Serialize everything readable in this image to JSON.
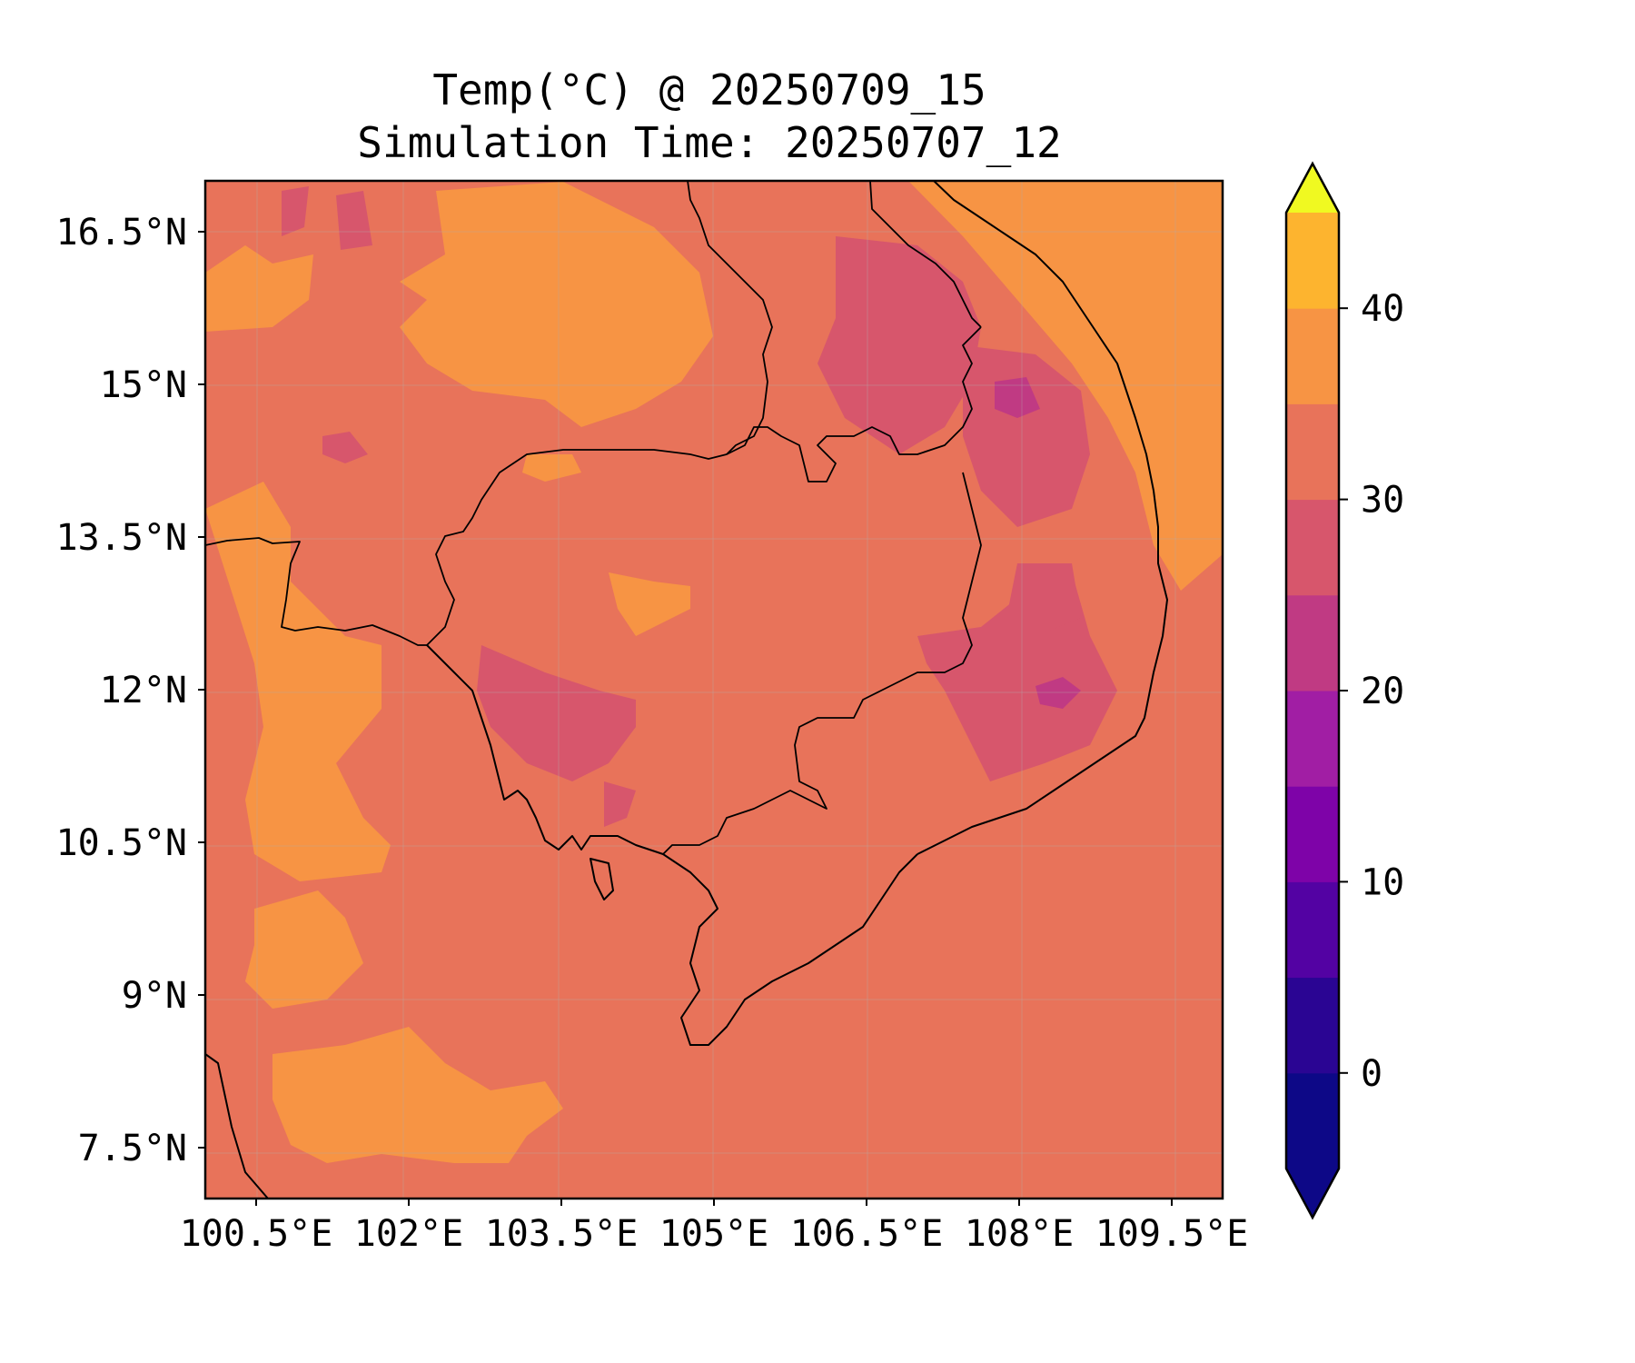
{
  "figure": {
    "title": "Temp(°C) @ 20250709_15",
    "subtitle": "Simulation Time: 20250707_12"
  },
  "map": {
    "lon_range": [
      100.0,
      110.0
    ],
    "lat_range": [
      7.0,
      17.0
    ],
    "lon_ticks": [
      {
        "value": 100.5,
        "label": "100.5°E"
      },
      {
        "value": 102.0,
        "label": "102°E"
      },
      {
        "value": 103.5,
        "label": "103.5°E"
      },
      {
        "value": 105.0,
        "label": "105°E"
      },
      {
        "value": 106.5,
        "label": "106.5°E"
      },
      {
        "value": 108.0,
        "label": "108°E"
      },
      {
        "value": 109.5,
        "label": "109.5°E"
      }
    ],
    "lat_ticks": [
      {
        "value": 16.5,
        "label": "16.5°N"
      },
      {
        "value": 15.0,
        "label": "15°N"
      },
      {
        "value": 13.5,
        "label": "13.5°N"
      },
      {
        "value": 12.0,
        "label": "12°N"
      },
      {
        "value": 10.5,
        "label": "10.5°N"
      },
      {
        "value": 9.0,
        "label": "9°N"
      },
      {
        "value": 7.5,
        "label": "7.5°N"
      }
    ],
    "gridlines": true,
    "background_band": {
      "range": [
        25,
        30
      ],
      "color": "#e8735a"
    }
  },
  "colorbar": {
    "levels": [
      -5,
      0,
      5,
      10,
      15,
      20,
      25,
      30,
      35,
      40,
      45
    ],
    "colors": [
      "#0d0887",
      "#2a0593",
      "#5302a3",
      "#7e03a8",
      "#a11ea4",
      "#c03a83",
      "#d7566c",
      "#e8735a",
      "#f79444",
      "#fdb42f",
      "#f5e228"
    ],
    "under_color": "#0d0887",
    "over_color": "#f0f921",
    "tick_labels": [
      {
        "value": 0,
        "label": "0"
      },
      {
        "value": 10,
        "label": "10"
      },
      {
        "value": 20,
        "label": "20"
      },
      {
        "value": 30,
        "label": "30"
      },
      {
        "value": 40,
        "label": "40"
      }
    ]
  }
}
